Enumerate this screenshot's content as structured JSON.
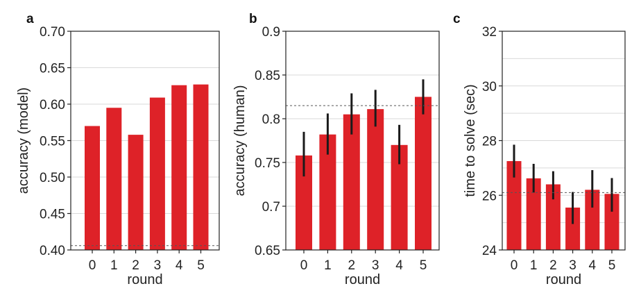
{
  "colors": {
    "bar": "#de2228",
    "errorbar": "#1a1a1a",
    "reference": "#555555",
    "axis": "#222222",
    "grid": "#d9d9d9"
  },
  "chart_data": [
    {
      "type": "bar",
      "panel_label": "a",
      "categories": [
        "0",
        "1",
        "2",
        "3",
        "4",
        "5"
      ],
      "values": [
        0.57,
        0.595,
        0.558,
        0.609,
        0.626,
        0.627
      ],
      "ylabel": "accuracy (model)",
      "xlabel": "round",
      "ylim": [
        0.4,
        0.7
      ],
      "yticks": [
        0.4,
        0.45,
        0.5,
        0.55,
        0.6,
        0.65,
        0.7
      ],
      "ytick_labels": [
        "0.40",
        "0.45",
        "0.50",
        "0.55",
        "0.60",
        "0.65",
        "0.70"
      ],
      "reference_line": 0.406,
      "grid": true
    },
    {
      "type": "bar",
      "panel_label": "b",
      "categories": [
        "0",
        "1",
        "2",
        "3",
        "4",
        "5"
      ],
      "values": [
        0.758,
        0.782,
        0.805,
        0.811,
        0.77,
        0.825
      ],
      "error_low": [
        0.734,
        0.759,
        0.782,
        0.791,
        0.748,
        0.805
      ],
      "error_high": [
        0.785,
        0.806,
        0.829,
        0.833,
        0.793,
        0.845
      ],
      "ylabel": "accuracy (human)",
      "xlabel": "round",
      "ylim": [
        0.65,
        0.9
      ],
      "yticks": [
        0.65,
        0.7,
        0.75,
        0.8,
        0.85,
        0.9
      ],
      "ytick_labels": [
        "0.65",
        "0.7",
        "0.75",
        "0.8",
        "0.85",
        "0.9"
      ],
      "reference_line": 0.815,
      "grid": true
    },
    {
      "type": "bar",
      "panel_label": "c",
      "categories": [
        "0",
        "1",
        "2",
        "3",
        "4",
        "5"
      ],
      "values": [
        27.25,
        26.62,
        26.4,
        25.55,
        26.2,
        26.05
      ],
      "error_low": [
        26.65,
        26.1,
        25.85,
        24.95,
        25.55,
        25.4
      ],
      "error_high": [
        27.85,
        27.15,
        26.88,
        26.12,
        26.92,
        26.63
      ],
      "ylabel": "time to solve (sec)",
      "xlabel": "round",
      "ylim": [
        24,
        32
      ],
      "yticks": [
        24,
        26,
        28,
        30,
        32
      ],
      "ytick_labels": [
        "24",
        "26",
        "28",
        "30",
        "32"
      ],
      "minor_grid_step": 1,
      "reference_line": 26.1,
      "grid": true
    }
  ]
}
